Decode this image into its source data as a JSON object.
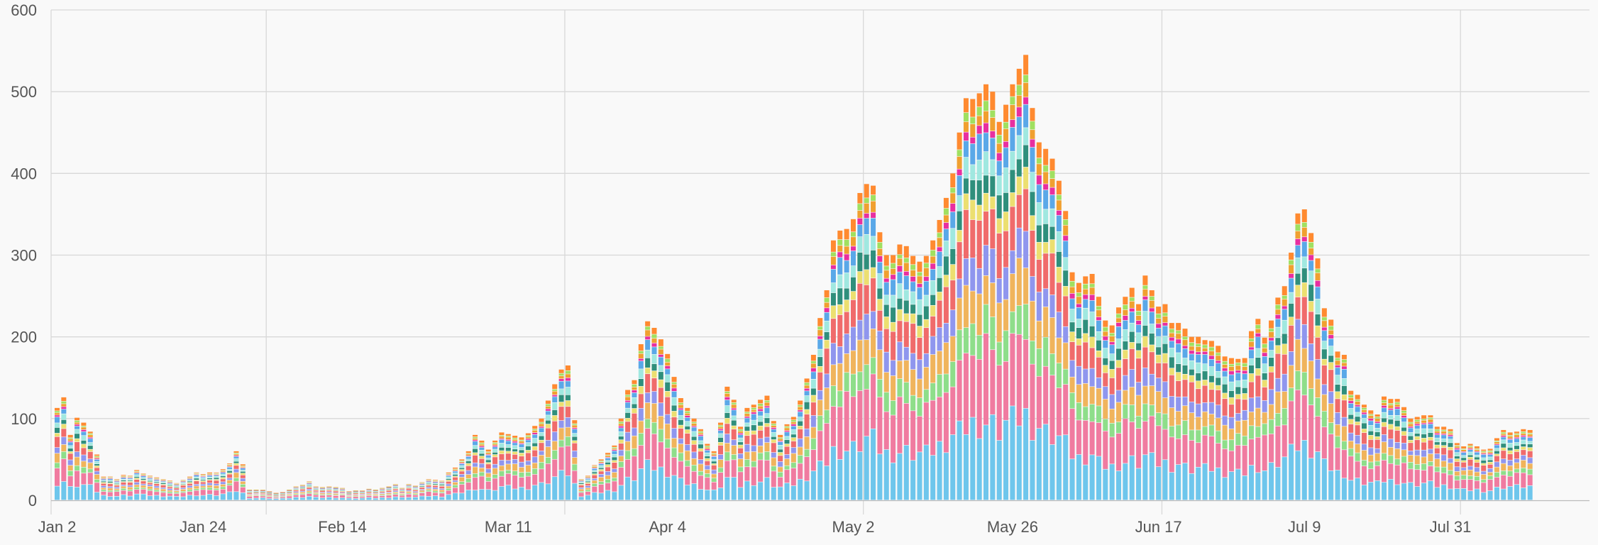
{
  "chart_data": {
    "type": "bar",
    "stacked": true,
    "title": "",
    "xlabel": "",
    "ylabel": "",
    "ylim": [
      0,
      600
    ],
    "y_ticks": [
      0,
      100,
      200,
      300,
      400,
      500,
      600
    ],
    "x_ticks": [
      "Jan 2",
      "Jan 24",
      "Feb 14",
      "Mar 11",
      "Apr 4",
      "May 2",
      "May 26",
      "Jun 17",
      "Jul 9",
      "Jul 31"
    ],
    "x_tick_days": [
      0,
      22,
      43,
      68,
      92,
      120,
      144,
      166,
      188,
      210
    ],
    "x_gridline_days": [
      32,
      77,
      122,
      167,
      212
    ],
    "bar_count": 223,
    "grid": true,
    "legend": "none",
    "series_colors": [
      "#6ec6ec",
      "#f07ba0",
      "#8ede8a",
      "#f0b45c",
      "#8f96ee",
      "#f06b6b",
      "#ecdf70",
      "#2f8f7c",
      "#a0e8e0",
      "#5aa8e8",
      "#e82fa0",
      "#f0a030",
      "#a0e060",
      "#ff8a30"
    ],
    "series_shares": [
      0.19,
      0.18,
      0.07,
      0.09,
      0.07,
      0.1,
      0.04,
      0.05,
      0.05,
      0.05,
      0.02,
      0.03,
      0.02,
      0.04
    ],
    "totals": [
      113,
      126,
      80,
      101,
      95,
      84,
      56,
      29,
      29,
      26,
      31,
      30,
      37,
      33,
      30,
      28,
      26,
      24,
      21,
      25,
      29,
      34,
      32,
      34,
      34,
      38,
      45,
      60,
      44,
      13,
      13,
      13,
      11,
      9,
      10,
      13,
      17,
      19,
      23,
      17,
      16,
      17,
      16,
      15,
      11,
      12,
      12,
      14,
      13,
      15,
      17,
      20,
      15,
      20,
      18,
      22,
      26,
      25,
      24,
      34,
      40,
      50,
      60,
      80,
      73,
      62,
      73,
      83,
      81,
      79,
      77,
      82,
      91,
      100,
      122,
      142,
      160,
      165,
      98,
      26,
      30,
      43,
      50,
      58,
      67,
      100,
      135,
      147,
      191,
      219,
      211,
      197,
      179,
      151,
      125,
      113,
      100,
      87,
      69,
      60,
      95,
      139,
      123,
      90,
      113,
      117,
      123,
      128,
      97,
      80,
      93,
      102,
      122,
      149,
      178,
      223,
      257,
      318,
      330,
      332,
      344,
      376,
      387,
      385,
      328,
      300,
      300,
      313,
      311,
      299,
      292,
      299,
      318,
      343,
      370,
      400,
      450,
      492,
      491,
      498,
      509,
      500,
      463,
      484,
      509,
      528,
      545,
      480,
      438,
      430,
      418,
      391,
      354,
      279,
      266,
      274,
      277,
      249,
      220,
      214,
      236,
      249,
      260,
      240,
      275,
      257,
      237,
      240,
      217,
      217,
      210,
      200,
      200,
      196,
      195,
      189,
      176,
      174,
      173,
      174,
      207,
      222,
      199,
      220,
      248,
      262,
      303,
      351,
      356,
      327,
      296,
      235,
      221,
      182,
      178,
      134,
      129,
      117,
      110,
      105,
      127,
      124,
      124,
      114,
      100,
      102,
      104,
      104,
      90,
      90,
      87,
      70,
      66,
      69,
      66,
      62,
      63,
      76,
      86,
      83,
      84,
      87,
      86
    ]
  }
}
